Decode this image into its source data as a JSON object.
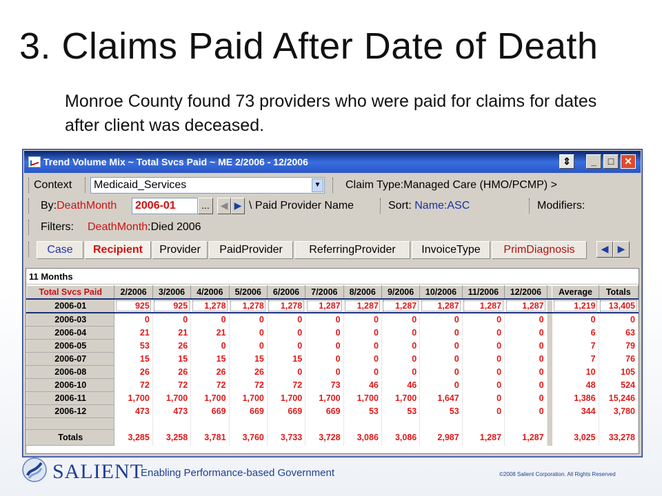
{
  "slide": {
    "title": "3. Claims Paid After Date of Death",
    "subtitle": "Monroe County found 73 providers who were paid for claims for dates after client was deceased."
  },
  "window": {
    "title": "Trend Volume Mix ~ Total Svcs Paid ~ ME 2/2006 - 12/2006",
    "controls": {
      "restore": "⇕",
      "minimize": "_",
      "maximize": "□",
      "close": "✕"
    }
  },
  "toolbar": {
    "context_label": "Context",
    "context_value": "Medicaid_Services",
    "claim_type": "Claim Type:Managed Care (HMO/PCMP) >",
    "by_label": "By:",
    "by_value": "DeathMonth",
    "date_value": "2006-01",
    "browse_label": "...",
    "paid_provider": "\\ Paid Provider Name",
    "sort_label": "Sort: ",
    "sort_value": "Name:ASC",
    "modifiers_label": "Modifiers:",
    "filters_label": "Filters:",
    "filter_name": "DeathMonth",
    "filter_value": ":Died 2006"
  },
  "tabs": [
    {
      "label": "Case"
    },
    {
      "label": "Recipient"
    },
    {
      "label": "Provider"
    },
    {
      "label": "PaidProvider"
    },
    {
      "label": "ReferringProvider"
    },
    {
      "label": "InvoiceType"
    },
    {
      "label": "PrimDiagnosis"
    }
  ],
  "grid": {
    "months_label": "11 Months",
    "headers": [
      "Total Svcs Paid",
      "2/2006",
      "3/2006",
      "4/2006",
      "5/2006",
      "6/2006",
      "7/2006",
      "8/2006",
      "9/2006",
      "10/2006",
      "11/2006",
      "12/2006",
      "Average",
      "Totals"
    ],
    "rows": [
      {
        "label": "2006-01",
        "values": [
          "925",
          "925",
          "1,278",
          "1,278",
          "1,278",
          "1,287",
          "1,287",
          "1,287",
          "1,287",
          "1,287",
          "1,287"
        ],
        "average": "1,219",
        "total": "13,405"
      },
      {
        "label": "2006-03",
        "values": [
          "0",
          "0",
          "0",
          "0",
          "0",
          "0",
          "0",
          "0",
          "0",
          "0",
          "0"
        ],
        "average": "0",
        "total": "0"
      },
      {
        "label": "2006-04",
        "values": [
          "21",
          "21",
          "21",
          "0",
          "0",
          "0",
          "0",
          "0",
          "0",
          "0",
          "0"
        ],
        "average": "6",
        "total": "63"
      },
      {
        "label": "2006-05",
        "values": [
          "53",
          "26",
          "0",
          "0",
          "0",
          "0",
          "0",
          "0",
          "0",
          "0",
          "0"
        ],
        "average": "7",
        "total": "79"
      },
      {
        "label": "2006-07",
        "values": [
          "15",
          "15",
          "15",
          "15",
          "15",
          "0",
          "0",
          "0",
          "0",
          "0",
          "0"
        ],
        "average": "7",
        "total": "76"
      },
      {
        "label": "2006-08",
        "values": [
          "26",
          "26",
          "26",
          "26",
          "0",
          "0",
          "0",
          "0",
          "0",
          "0",
          "0"
        ],
        "average": "10",
        "total": "105"
      },
      {
        "label": "2006-10",
        "values": [
          "72",
          "72",
          "72",
          "72",
          "72",
          "73",
          "46",
          "46",
          "0",
          "0",
          "0"
        ],
        "average": "48",
        "total": "524"
      },
      {
        "label": "2006-11",
        "values": [
          "1,700",
          "1,700",
          "1,700",
          "1,700",
          "1,700",
          "1,700",
          "1,700",
          "1,700",
          "1,647",
          "0",
          "0"
        ],
        "average": "1,386",
        "total": "15,246"
      },
      {
        "label": "2006-12",
        "values": [
          "473",
          "473",
          "669",
          "669",
          "669",
          "669",
          "53",
          "53",
          "53",
          "0",
          "0"
        ],
        "average": "344",
        "total": "3,780"
      }
    ],
    "totals": {
      "label": "Totals",
      "values": [
        "3,285",
        "3,258",
        "3,781",
        "3,760",
        "3,733",
        "3,728",
        "3,086",
        "3,086",
        "2,987",
        "1,287",
        "1,287"
      ],
      "average": "3,025",
      "total": "33,278"
    }
  },
  "footer": {
    "brand": "SALIENT",
    "tagline": "Enabling Performance-based Government",
    "copyright": "©2008 Salient Corporation. All Rights Reserved"
  },
  "colors": {
    "accent": "#1e3f8f",
    "data_red": "#e01818",
    "title_bar": "#2a56c6"
  }
}
